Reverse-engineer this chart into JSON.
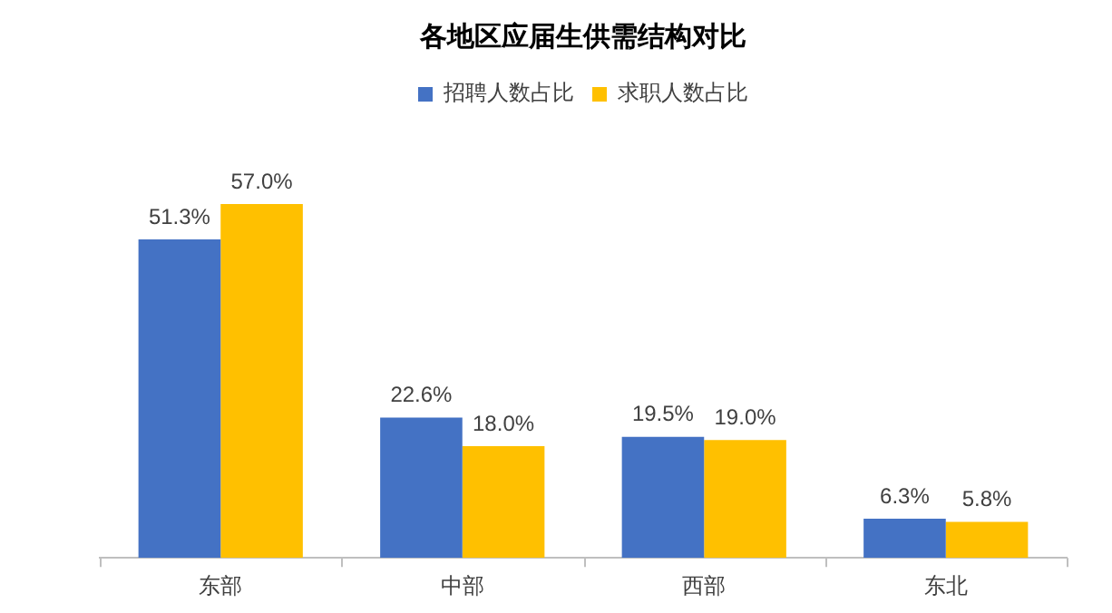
{
  "chart_data": {
    "type": "bar",
    "title": "各地区应届生供需结构对比",
    "categories": [
      "东部",
      "中部",
      "西部",
      "东北"
    ],
    "series": [
      {
        "name": "招聘人数占比",
        "color": "#4472c4",
        "values": [
          51.3,
          22.6,
          19.5,
          6.3
        ],
        "value_labels": [
          "51.3%",
          "22.6%",
          "19.5%",
          "6.3%"
        ]
      },
      {
        "name": "求职人数占比",
        "color": "#ffc000",
        "values": [
          57.0,
          18.0,
          19.0,
          5.8
        ],
        "value_labels": [
          "57.0%",
          "18.0%",
          "19.0%",
          "5.8%"
        ]
      }
    ],
    "legend": "top",
    "grid": false,
    "tick_labels": "x"
  }
}
